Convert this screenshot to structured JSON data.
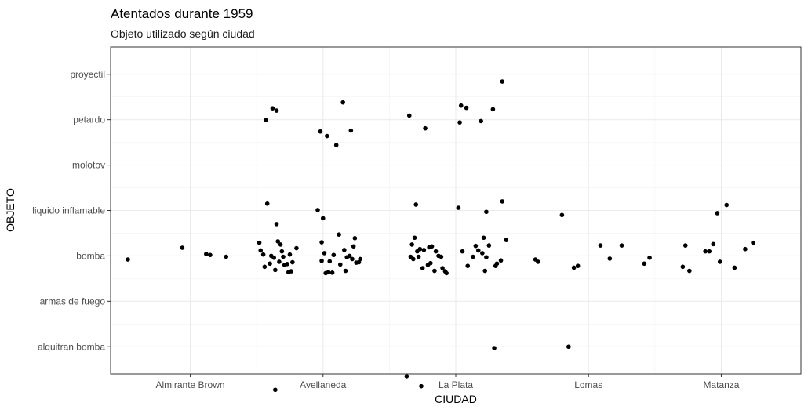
{
  "chart_data": {
    "type": "scatter",
    "title": "Atentados durante 1959",
    "subtitle": "Objeto utilizado según ciudad",
    "xlabel": "CIUDAD",
    "ylabel": "OBJETO",
    "x_categories": [
      "Almirante Brown",
      "Avellaneda",
      "La Plata",
      "Lomas",
      "Matanza"
    ],
    "y_categories": [
      "alquitran bomba",
      "armas de fuego",
      "bomba",
      "liquido inflamable",
      "molotov",
      "petardo",
      "proyectil"
    ],
    "grid": true,
    "legend": "none",
    "point_color": "#000000",
    "points": [
      {
        "x": 0.53,
        "y": 2.92
      },
      {
        "x": 0.94,
        "y": 3.18
      },
      {
        "x": 1.12,
        "y": 3.04
      },
      {
        "x": 1.15,
        "y": 3.02
      },
      {
        "x": 1.27,
        "y": 2.98
      },
      {
        "x": 1.52,
        "y": 3.29
      },
      {
        "x": 1.53,
        "y": 3.12
      },
      {
        "x": 1.55,
        "y": 3.03
      },
      {
        "x": 1.56,
        "y": 2.76
      },
      {
        "x": 1.57,
        "y": 5.99
      },
      {
        "x": 1.58,
        "y": 4.15
      },
      {
        "x": 1.6,
        "y": 2.83
      },
      {
        "x": 1.61,
        "y": 3.0
      },
      {
        "x": 1.62,
        "y": 6.25
      },
      {
        "x": 1.63,
        "y": 2.96
      },
      {
        "x": 1.64,
        "y": 2.69
      },
      {
        "x": 1.64,
        "y": 0.05
      },
      {
        "x": 1.65,
        "y": 6.2
      },
      {
        "x": 1.65,
        "y": 3.7
      },
      {
        "x": 1.66,
        "y": 3.32
      },
      {
        "x": 1.67,
        "y": 2.87
      },
      {
        "x": 1.68,
        "y": 3.25
      },
      {
        "x": 1.69,
        "y": 3.1
      },
      {
        "x": 1.7,
        "y": 2.98
      },
      {
        "x": 1.71,
        "y": 2.8
      },
      {
        "x": 1.73,
        "y": 2.82
      },
      {
        "x": 1.74,
        "y": 2.64
      },
      {
        "x": 1.75,
        "y": 3.03
      },
      {
        "x": 1.76,
        "y": 2.66
      },
      {
        "x": 1.77,
        "y": 2.86
      },
      {
        "x": 1.8,
        "y": 3.17
      },
      {
        "x": 1.96,
        "y": 4.01
      },
      {
        "x": 1.98,
        "y": 5.74
      },
      {
        "x": 1.99,
        "y": 3.3
      },
      {
        "x": 1.99,
        "y": 2.89
      },
      {
        "x": 2.0,
        "y": 3.83
      },
      {
        "x": 2.01,
        "y": 3.06
      },
      {
        "x": 2.02,
        "y": 2.62
      },
      {
        "x": 2.03,
        "y": 5.64
      },
      {
        "x": 2.04,
        "y": 2.64
      },
      {
        "x": 2.05,
        "y": 2.88
      },
      {
        "x": 2.07,
        "y": 2.63
      },
      {
        "x": 2.08,
        "y": 3.02
      },
      {
        "x": 2.1,
        "y": 5.44
      },
      {
        "x": 2.12,
        "y": 3.47
      },
      {
        "x": 2.13,
        "y": 2.81
      },
      {
        "x": 2.15,
        "y": 6.38
      },
      {
        "x": 2.16,
        "y": 3.13
      },
      {
        "x": 2.17,
        "y": 2.67
      },
      {
        "x": 2.18,
        "y": 2.97
      },
      {
        "x": 2.2,
        "y": 3.0
      },
      {
        "x": 2.21,
        "y": 5.76
      },
      {
        "x": 2.22,
        "y": 2.93
      },
      {
        "x": 2.23,
        "y": 3.21
      },
      {
        "x": 2.24,
        "y": 3.39
      },
      {
        "x": 2.25,
        "y": 2.85
      },
      {
        "x": 2.27,
        "y": 2.86
      },
      {
        "x": 2.28,
        "y": 2.93
      },
      {
        "x": 2.63,
        "y": 0.35
      },
      {
        "x": 2.65,
        "y": 6.09
      },
      {
        "x": 2.66,
        "y": 2.98
      },
      {
        "x": 2.67,
        "y": 3.25
      },
      {
        "x": 2.68,
        "y": 2.93
      },
      {
        "x": 2.69,
        "y": 3.4
      },
      {
        "x": 2.7,
        "y": 4.13
      },
      {
        "x": 2.71,
        "y": 3.1
      },
      {
        "x": 2.72,
        "y": 2.98
      },
      {
        "x": 2.73,
        "y": 3.15
      },
      {
        "x": 2.74,
        "y": 0.13
      },
      {
        "x": 2.75,
        "y": 2.73
      },
      {
        "x": 2.76,
        "y": 3.13
      },
      {
        "x": 2.77,
        "y": 5.81
      },
      {
        "x": 2.79,
        "y": 2.8
      },
      {
        "x": 2.8,
        "y": 3.19
      },
      {
        "x": 2.81,
        "y": 2.84
      },
      {
        "x": 2.82,
        "y": 3.21
      },
      {
        "x": 2.84,
        "y": 2.67
      },
      {
        "x": 2.85,
        "y": 3.1
      },
      {
        "x": 2.87,
        "y": 3.0
      },
      {
        "x": 2.89,
        "y": 2.98
      },
      {
        "x": 2.9,
        "y": 2.73
      },
      {
        "x": 2.92,
        "y": 2.66
      },
      {
        "x": 2.93,
        "y": 2.62
      },
      {
        "x": 3.02,
        "y": 4.06
      },
      {
        "x": 3.03,
        "y": 5.94
      },
      {
        "x": 3.04,
        "y": 6.31
      },
      {
        "x": 3.05,
        "y": 3.1
      },
      {
        "x": 3.08,
        "y": 6.26
      },
      {
        "x": 3.09,
        "y": 2.78
      },
      {
        "x": 3.13,
        "y": 2.98
      },
      {
        "x": 3.15,
        "y": 3.22
      },
      {
        "x": 3.17,
        "y": 3.12
      },
      {
        "x": 3.19,
        "y": 5.97
      },
      {
        "x": 3.2,
        "y": 3.06
      },
      {
        "x": 3.21,
        "y": 3.4
      },
      {
        "x": 3.22,
        "y": 2.67
      },
      {
        "x": 3.23,
        "y": 2.97
      },
      {
        "x": 3.23,
        "y": 3.97
      },
      {
        "x": 3.25,
        "y": 3.23
      },
      {
        "x": 3.28,
        "y": 6.23
      },
      {
        "x": 3.29,
        "y": 0.97
      },
      {
        "x": 3.3,
        "y": 2.78
      },
      {
        "x": 3.31,
        "y": 2.83
      },
      {
        "x": 3.34,
        "y": 2.9
      },
      {
        "x": 3.35,
        "y": 4.2
      },
      {
        "x": 3.35,
        "y": 6.84
      },
      {
        "x": 3.38,
        "y": 3.35
      },
      {
        "x": 3.6,
        "y": 2.92
      },
      {
        "x": 3.62,
        "y": 2.87
      },
      {
        "x": 3.8,
        "y": 3.9
      },
      {
        "x": 3.85,
        "y": 1.0
      },
      {
        "x": 3.89,
        "y": 2.74
      },
      {
        "x": 3.92,
        "y": 2.78
      },
      {
        "x": 4.09,
        "y": 3.23
      },
      {
        "x": 4.16,
        "y": 2.94
      },
      {
        "x": 4.25,
        "y": 3.23
      },
      {
        "x": 4.42,
        "y": 2.83
      },
      {
        "x": 4.46,
        "y": 2.96
      },
      {
        "x": 4.71,
        "y": 2.76
      },
      {
        "x": 4.73,
        "y": 3.23
      },
      {
        "x": 4.76,
        "y": 2.67
      },
      {
        "x": 4.88,
        "y": 3.1
      },
      {
        "x": 4.91,
        "y": 3.1
      },
      {
        "x": 4.94,
        "y": 3.26
      },
      {
        "x": 4.97,
        "y": 3.94
      },
      {
        "x": 4.99,
        "y": 2.87
      },
      {
        "x": 5.04,
        "y": 4.12
      },
      {
        "x": 5.1,
        "y": 2.74
      },
      {
        "x": 5.18,
        "y": 3.15
      },
      {
        "x": 5.24,
        "y": 3.29
      }
    ]
  }
}
